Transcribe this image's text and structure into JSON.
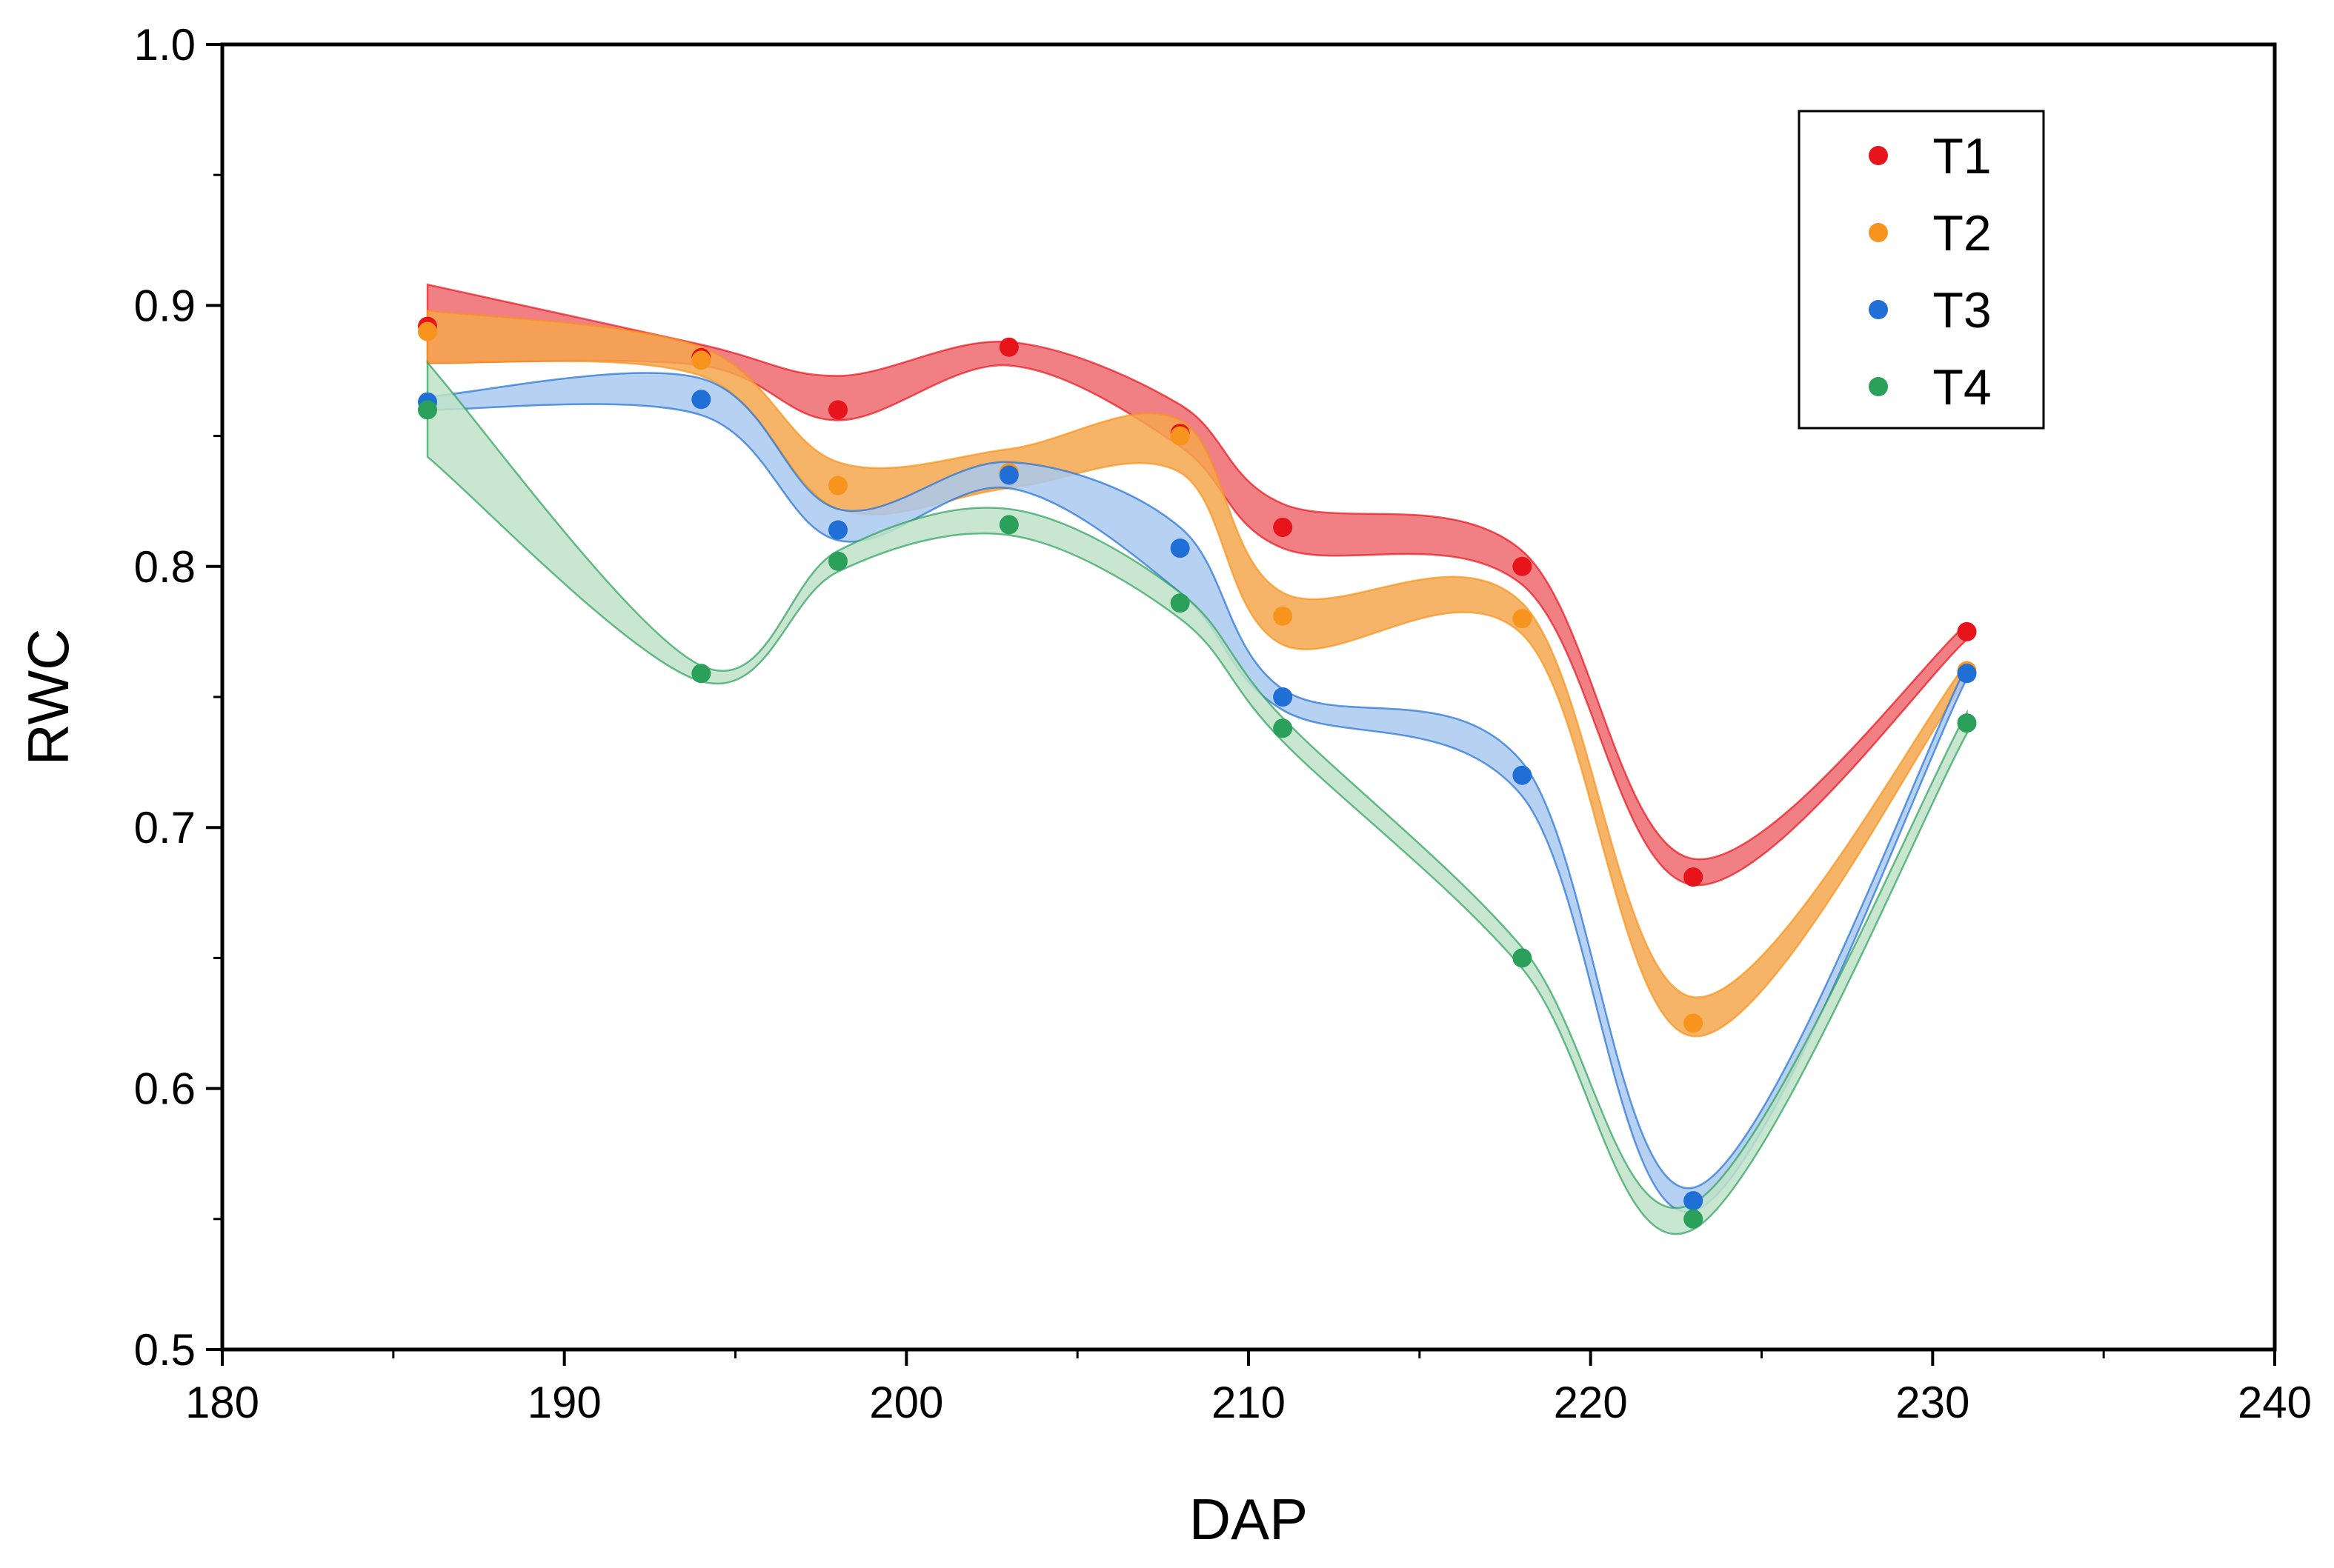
{
  "chart_data": {
    "type": "line",
    "title": "",
    "xlabel": "DAP",
    "ylabel": "RWC",
    "xlim": [
      180,
      240
    ],
    "ylim": [
      0.5,
      1.0
    ],
    "x_ticks": [
      180,
      190,
      200,
      210,
      220,
      230,
      240
    ],
    "y_ticks": [
      0.5,
      0.6,
      0.7,
      0.8,
      0.9,
      1.0
    ],
    "y_tick_labels": [
      "0.5",
      "0.6",
      "0.7",
      "0.8",
      "0.9",
      "1.0"
    ],
    "grid": false,
    "legend_position": "top-right",
    "x": [
      186,
      194,
      198,
      203,
      208,
      211,
      218,
      223,
      231
    ],
    "series": [
      {
        "name": "T1",
        "color": "#e8141c",
        "band_color": "#ee6a6f",
        "values": [
          0.892,
          0.88,
          0.86,
          0.884,
          0.851,
          0.815,
          0.8,
          0.681,
          0.775
        ],
        "upper": [
          0.908,
          0.885,
          0.873,
          0.886,
          0.862,
          0.824,
          0.806,
          0.688,
          0.778
        ],
        "lower": [
          0.878,
          0.877,
          0.856,
          0.877,
          0.846,
          0.807,
          0.793,
          0.678,
          0.772
        ]
      },
      {
        "name": "T2",
        "color": "#f7941d",
        "band_color": "#f4a74f",
        "values": [
          0.89,
          0.879,
          0.831,
          0.836,
          0.85,
          0.781,
          0.78,
          0.625,
          0.76
        ],
        "upper": [
          0.898,
          0.884,
          0.84,
          0.845,
          0.856,
          0.79,
          0.786,
          0.635,
          0.763
        ],
        "lower": [
          0.878,
          0.873,
          0.822,
          0.83,
          0.836,
          0.77,
          0.774,
          0.62,
          0.757
        ]
      },
      {
        "name": "T3",
        "color": "#1f6fd6",
        "band_color": "#a9c9ef",
        "values": [
          0.863,
          0.864,
          0.814,
          0.835,
          0.807,
          0.75,
          0.72,
          0.557,
          0.759
        ],
        "upper": [
          0.865,
          0.872,
          0.822,
          0.84,
          0.815,
          0.753,
          0.725,
          0.562,
          0.762
        ],
        "lower": [
          0.86,
          0.858,
          0.81,
          0.83,
          0.79,
          0.745,
          0.712,
          0.553,
          0.757
        ]
      },
      {
        "name": "T4",
        "color": "#2aa05a",
        "band_color": "#bfe3c8",
        "values": [
          0.86,
          0.759,
          0.802,
          0.816,
          0.786,
          0.738,
          0.65,
          0.55,
          0.74
        ],
        "upper": [
          0.878,
          0.762,
          0.806,
          0.822,
          0.79,
          0.742,
          0.654,
          0.556,
          0.744
        ],
        "lower": [
          0.842,
          0.756,
          0.798,
          0.812,
          0.78,
          0.733,
          0.646,
          0.546,
          0.736
        ]
      }
    ]
  }
}
